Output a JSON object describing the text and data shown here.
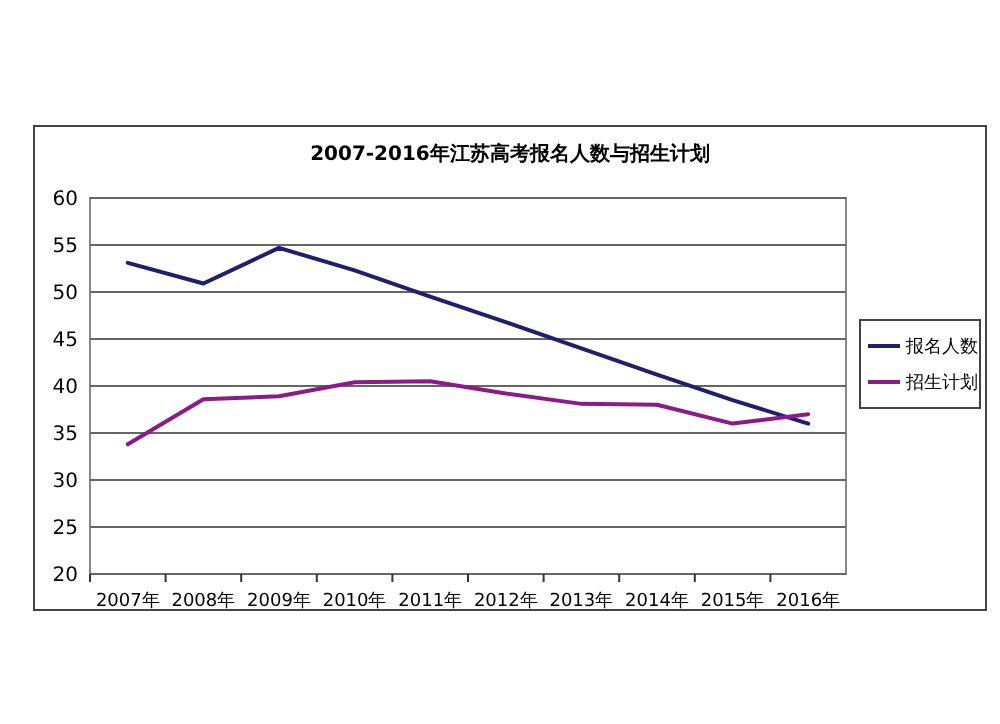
{
  "chart_data": {
    "type": "line",
    "title": "2007-2016年江苏高考报名人数与招生计划",
    "categories": [
      "2007年",
      "2008年",
      "2009年",
      "2010年",
      "2011年",
      "2012年",
      "2013年",
      "2014年",
      "2015年",
      "2016年"
    ],
    "series": [
      {
        "name": "报名人数",
        "color": "#1f1f6e",
        "values": [
          53.1,
          50.9,
          54.7,
          52.3,
          49.5,
          46.8,
          44,
          41.2,
          38.5,
          36
        ]
      },
      {
        "name": "招生计划",
        "color": "#8b1a8b",
        "values": [
          33.8,
          38.6,
          38.9,
          40.4,
          40.5,
          39.2,
          38.1,
          38,
          36,
          37
        ]
      }
    ],
    "ylim": [
      20,
      60
    ],
    "yticks": [
      20,
      25,
      30,
      35,
      40,
      45,
      50,
      55,
      60
    ],
    "grid": "y",
    "legend": "right",
    "marker": "none",
    "line_style": "solid"
  }
}
